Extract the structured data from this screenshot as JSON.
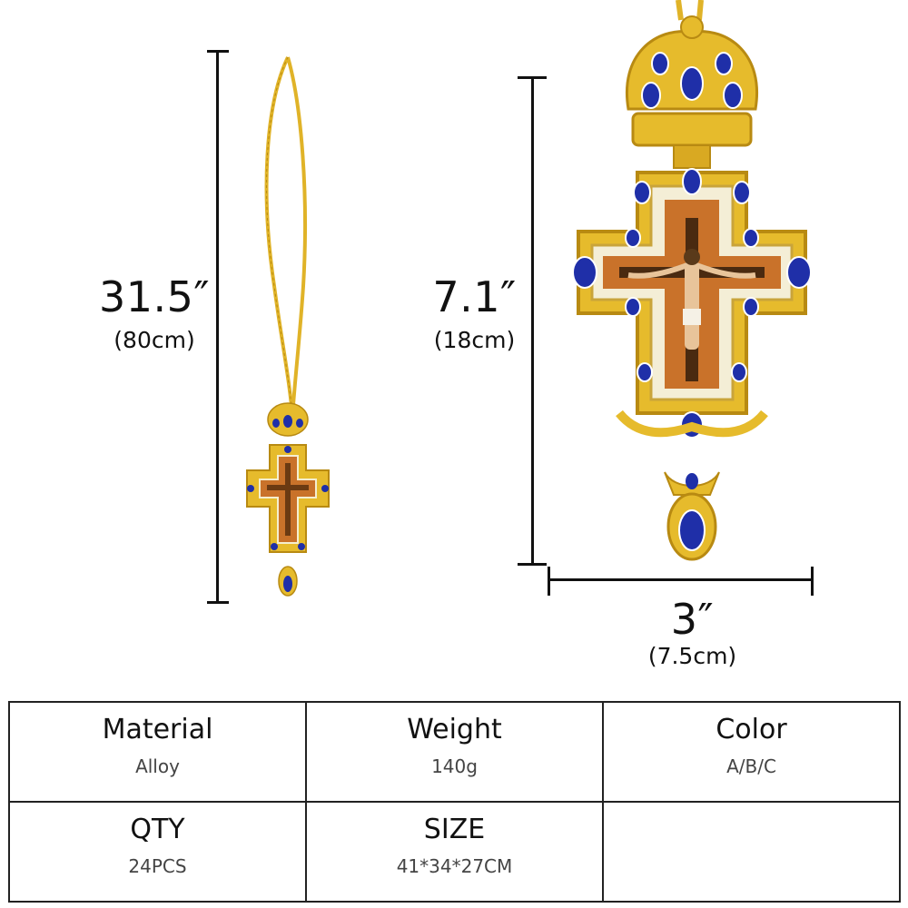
{
  "dimensions": {
    "length_in": "31.5″",
    "length_cm": "(80cm)",
    "height_in": "7.1″",
    "height_cm": "(18cm)",
    "width_in": "3″",
    "width_cm": "(7.5cm)"
  },
  "specs": {
    "material": {
      "label": "Material",
      "value": "Alloy"
    },
    "weight": {
      "label": "Weight",
      "value": "140g"
    },
    "color": {
      "label": "Color",
      "value": "A/B/C"
    },
    "qty": {
      "label": "QTY",
      "value": "24PCS"
    },
    "size": {
      "label": "SIZE",
      "value": "41*34*27CM"
    }
  },
  "colors": {
    "gold": "#e6bb2c",
    "gold_dark": "#b88a12",
    "stone_blue": "#1f2fa8",
    "icon_bg": "#c9722a"
  }
}
